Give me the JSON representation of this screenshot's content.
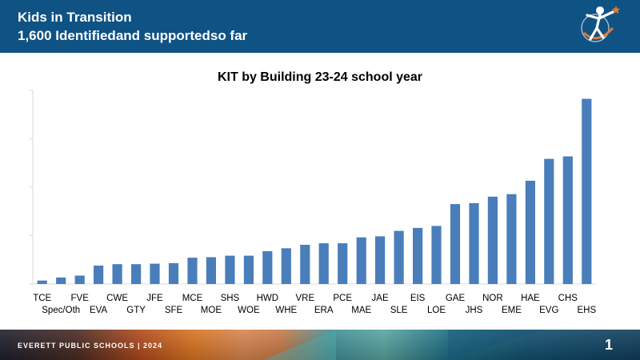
{
  "header": {
    "title_line1": "Kids in Transition",
    "title_line2": "1,600 Identifiedand supportedso far"
  },
  "logo_icon": "everett-schools-figure-logo-icon",
  "colors": {
    "header": "#0f5284",
    "bar": "#4a7ebb",
    "axis": "#d9d9d9"
  },
  "chart_data": {
    "type": "bar",
    "title": "KIT by Building 23-24 school year",
    "categories": [
      "TCE",
      "Spec/Oth",
      "FVE",
      "EVA",
      "CWE",
      "GTY",
      "JFE",
      "SFE",
      "MCE",
      "MOE",
      "SHS",
      "WOE",
      "HWD",
      "WHE",
      "VRE",
      "ERA",
      "PCE",
      "MAE",
      "JAE",
      "SLE",
      "EIS",
      "LOE",
      "GAE",
      "JHS",
      "NOR",
      "EME",
      "HAE",
      "EVG",
      "CHS",
      "EHS"
    ],
    "values": [
      7,
      13,
      17,
      37,
      40,
      40,
      41,
      42,
      53,
      54,
      57,
      57,
      66,
      72,
      79,
      82,
      82,
      94,
      96,
      107,
      113,
      117,
      161,
      163,
      176,
      181,
      208,
      252,
      257,
      373
    ],
    "ylim": [
      0,
      390
    ],
    "xlabel": "",
    "ylabel": "",
    "grid": false,
    "legend": "none"
  },
  "footer": {
    "org": "EVERETT PUBLIC SCHOOLS  |  2024",
    "page": "1"
  }
}
